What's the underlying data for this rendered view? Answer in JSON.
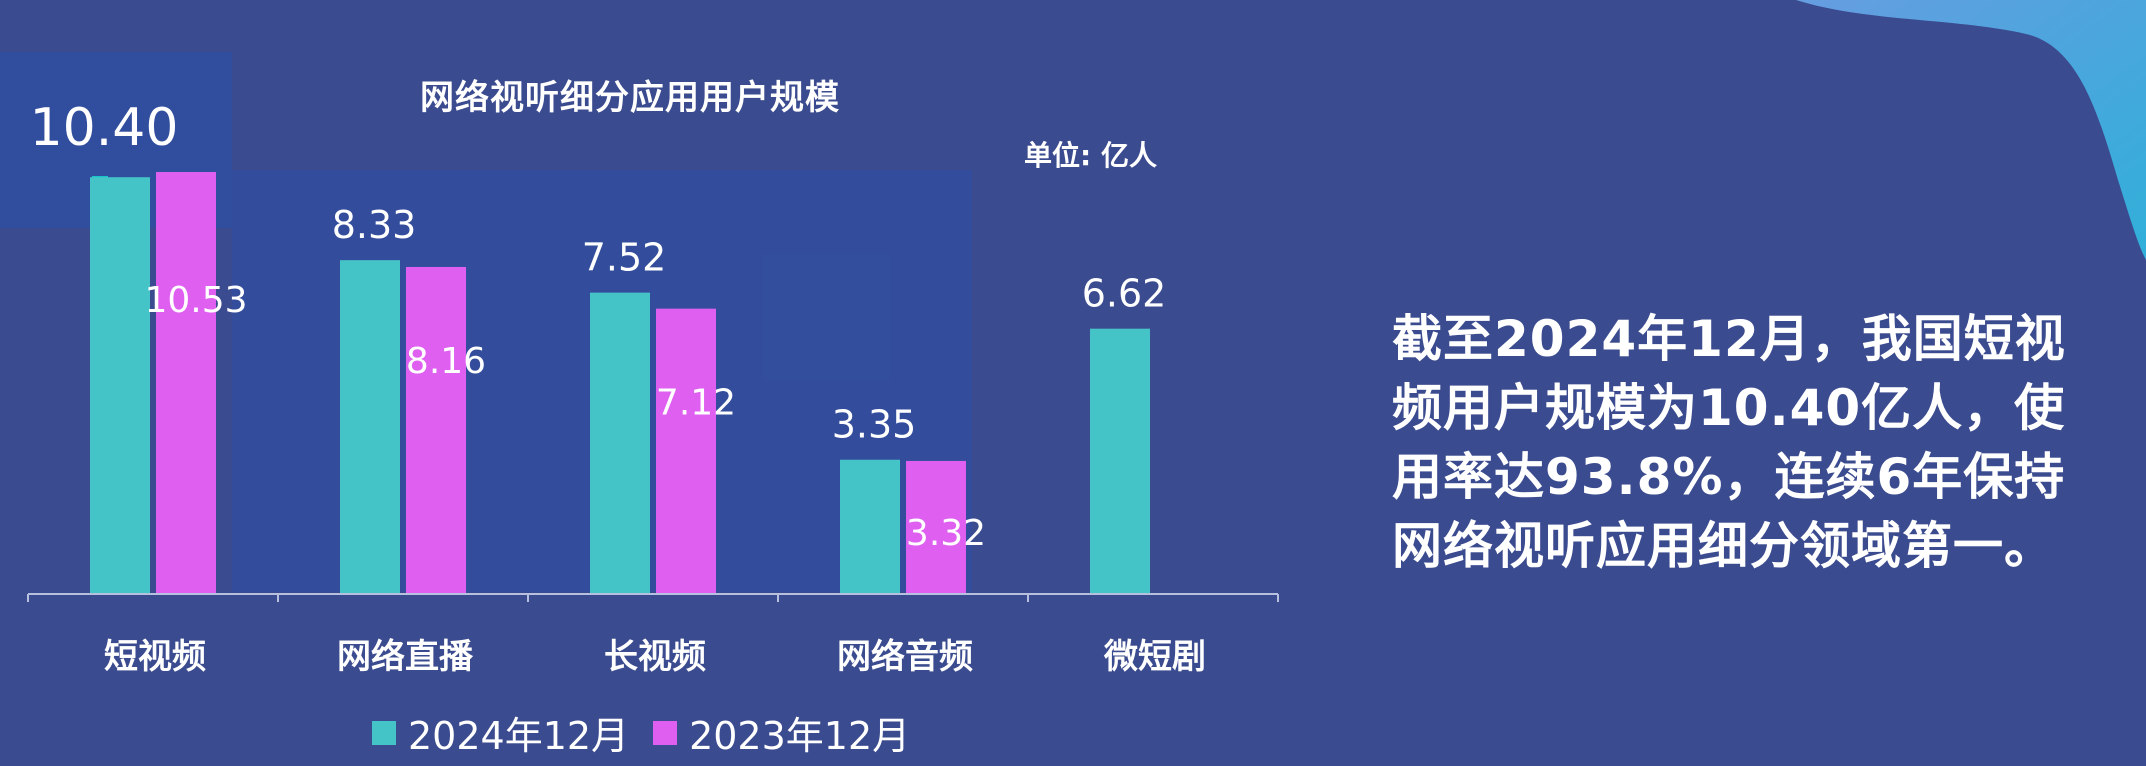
{
  "colors": {
    "background": "#3b4b8f",
    "teal": "#45c4c8",
    "magenta": "#df5ff0",
    "text": "#ffffff"
  },
  "chart_data": {
    "type": "bar",
    "title": "网络视听细分应用用户规模",
    "unit": "单位: 亿人",
    "categories": [
      "短视频",
      "网络直播",
      "长视频",
      "网络音频",
      "微短剧"
    ],
    "series": [
      {
        "name": "2024年12月",
        "color": "#45c4c8",
        "values": [
          10.4,
          8.33,
          7.52,
          3.35,
          6.62
        ],
        "labels": [
          "10.40",
          "8.33",
          "7.52",
          "3.35",
          "6.62"
        ]
      },
      {
        "name": "2023年12月",
        "color": "#df5ff0",
        "values": [
          10.53,
          8.16,
          7.12,
          3.32,
          null
        ],
        "labels": [
          "10.53",
          "8.16",
          "7.12",
          "3.32",
          null
        ]
      }
    ],
    "ylim": [
      0,
      10.53
    ],
    "legend_position": "bottom",
    "grid": false,
    "xlabel": "",
    "ylabel": ""
  },
  "summary": {
    "text": "截至2024年12月，我国短视频用户规模为10.40亿人，使用率达93.8%，连续6年保持网络视听应用细分领域第一。"
  },
  "decor": {
    "corner_icon": "abstract-wave-icon"
  }
}
